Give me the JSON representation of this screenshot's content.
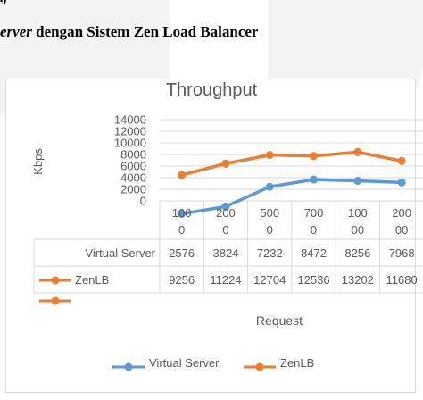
{
  "document": {
    "heading_italic": "erver",
    "heading_rest": " dengan Sistem Zen Load Balancer",
    "cut_top_text": "lj"
  },
  "chart_data": {
    "type": "line",
    "title": "Throughput",
    "xlabel": "Request",
    "ylabel": "Kbps",
    "ylim": [
      0,
      14000
    ],
    "yticks": [
      "0",
      "2000",
      "4000",
      "6000",
      "8000",
      "10000",
      "12000",
      "14000"
    ],
    "categories": [
      "1000",
      "2000",
      "5000",
      "7000",
      "10000",
      "20000"
    ],
    "category_tick_lines": [
      [
        "100",
        "0"
      ],
      [
        "200",
        "0"
      ],
      [
        "500",
        "0"
      ],
      [
        "700",
        "0"
      ],
      [
        "100",
        "00"
      ],
      [
        "200",
        "00"
      ]
    ],
    "series": [
      {
        "name": "Virtual Server",
        "color": "#5b9bd5",
        "values": [
          2576,
          3824,
          7232,
          8472,
          8256,
          7968
        ],
        "value_labels": [
          "2576",
          "3824",
          "7232",
          "8472",
          "8256",
          "7968"
        ]
      },
      {
        "name": "ZenLB",
        "color": "#ed7d31",
        "values": [
          9256,
          11224,
          12704,
          12536,
          13202,
          11680
        ],
        "value_labels": [
          "9256",
          "11224",
          "12704",
          "12536",
          "13202",
          "11680"
        ]
      }
    ],
    "data_table": true,
    "legend": "bottom",
    "grid": true,
    "gridline_color": "#d9d9d9"
  }
}
